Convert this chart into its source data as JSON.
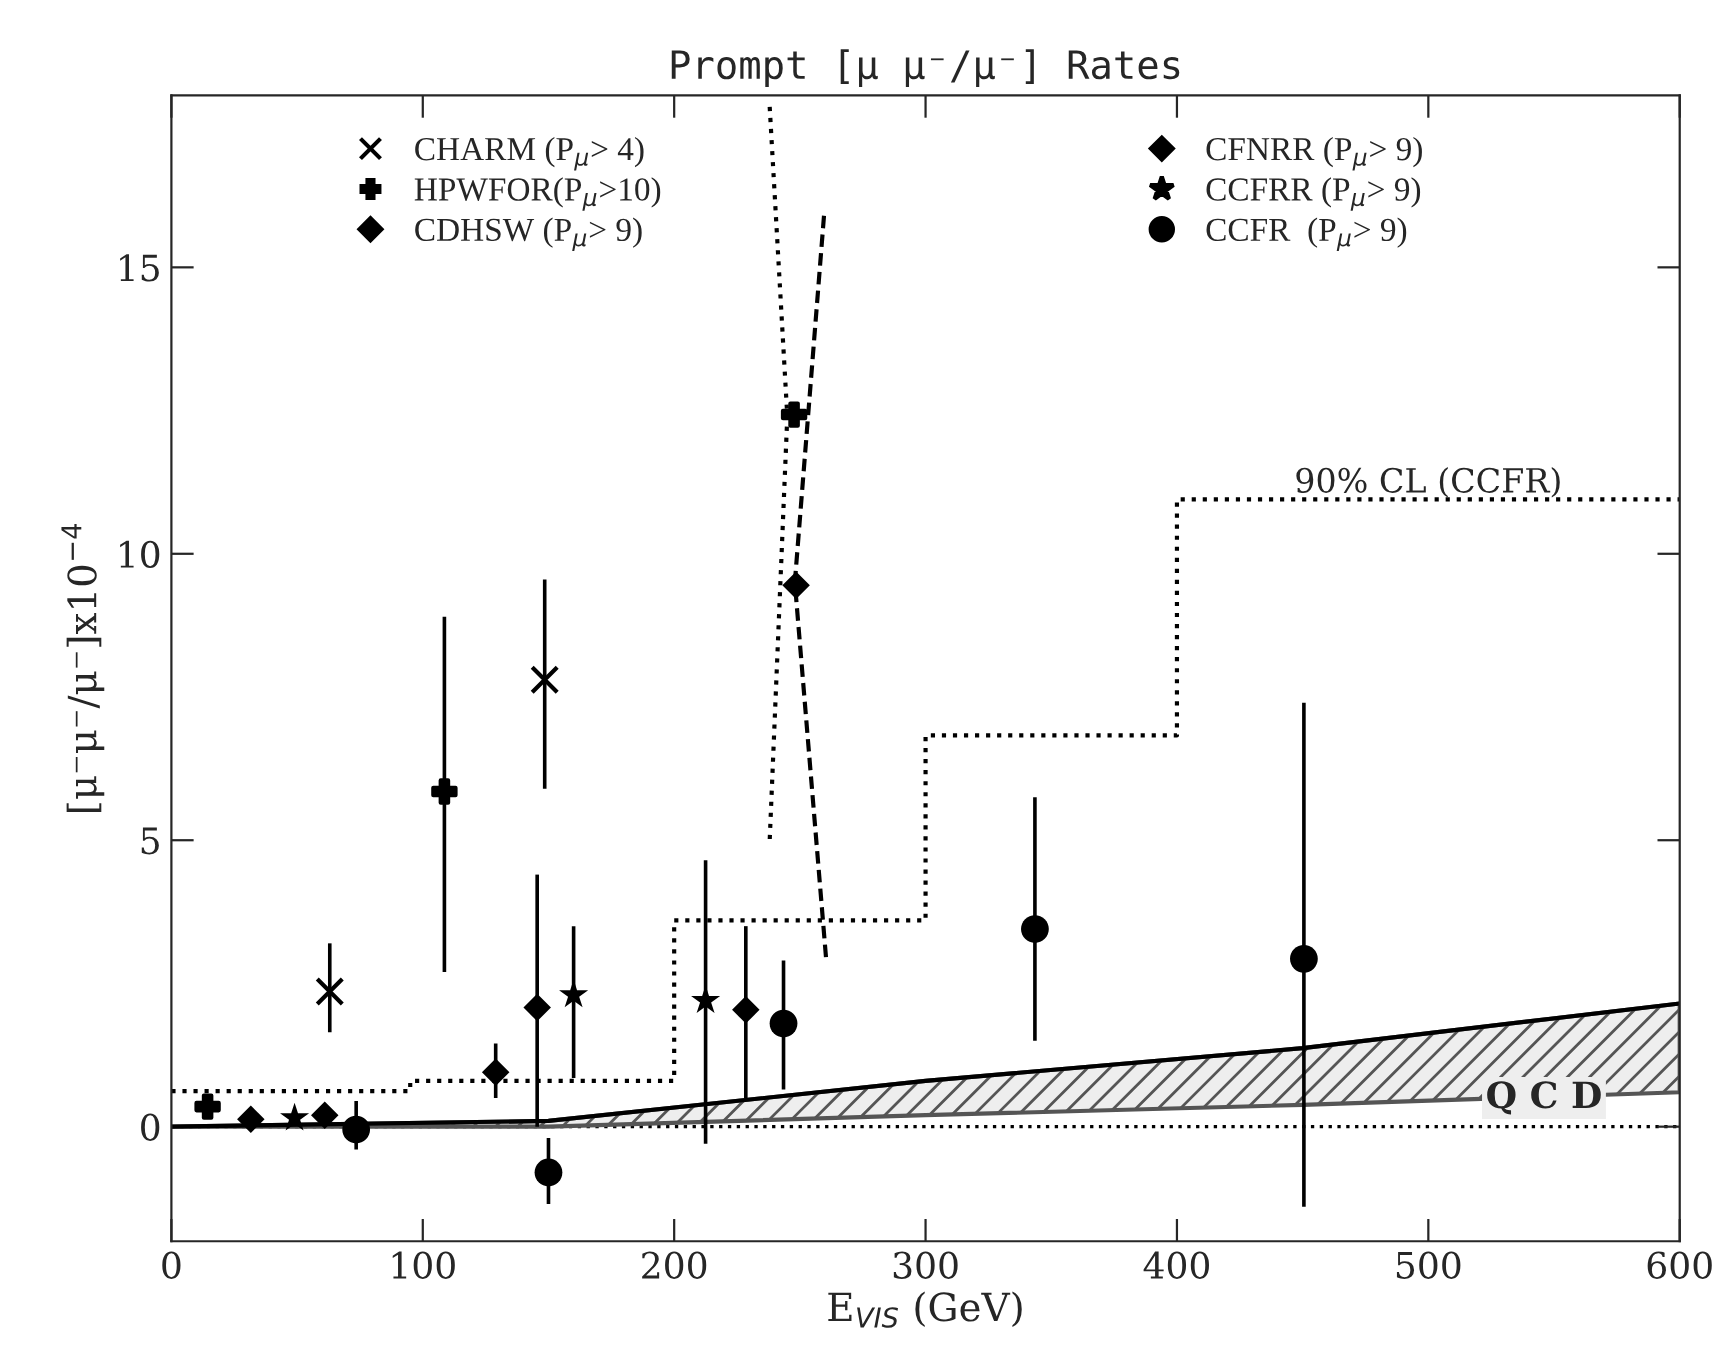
{
  "chart_data": {
    "type": "scatter",
    "title": "Prompt [μ μ⁻/μ⁻] Rates",
    "xlabel": "E$_{VIS}$ (GeV)",
    "ylabel": "[μ⁻μ⁻/μ⁻]x10$^{−4}$",
    "xlim": [
      0,
      600
    ],
    "ylim": [
      -2,
      18
    ],
    "xticks": [
      0,
      100,
      200,
      300,
      400,
      500,
      600
    ],
    "yticks": [
      0,
      5,
      10,
      15
    ],
    "grid": false,
    "legend": "top",
    "series": [
      {
        "name": "CHARM (P$_{μ}$> 4)",
        "color": "#000000",
        "marker": "cross",
        "x": [
          63,
          148.5
        ],
        "values": [
          2.36,
          7.8
        ],
        "errors": [
          [
            1.65,
            3.2
          ],
          [
            5.9,
            9.55
          ]
        ]
      },
      {
        "name": "HPWFOR(P$_{μ}$>10)",
        "color": "#000000",
        "marker": "plus",
        "x": [
          14.4,
          108.6,
          247.7
        ],
        "values": [
          0.35,
          5.85,
          12.43
        ],
        "errors": [
          null,
          [
            2.7,
            8.9
          ],
          null
        ]
      },
      {
        "name": "CDHSW (P$_{μ}$> 9)",
        "color": "#000000",
        "marker": "diamond",
        "x": [
          129
        ],
        "values": [
          0.95
        ],
        "errors": [
          [
            0.5,
            1.45
          ]
        ]
      },
      {
        "name": "CFNRR (P$_{μ}$> 9)",
        "color": "#000000",
        "marker": "diamond",
        "x": [
          31.6,
          61,
          145.5,
          228.5,
          248.5
        ],
        "values": [
          0.13,
          0.2,
          2.08,
          2.04,
          9.45
        ],
        "errors": [
          null,
          null,
          [
            0,
            4.4
          ],
          [
            0.5,
            3.5
          ],
          null
        ]
      },
      {
        "name": "CCFRR (P$_{μ}$> 9)",
        "color": "#000000",
        "marker": "star",
        "x": [
          49,
          160,
          212.5
        ],
        "values": [
          0.15,
          2.3,
          2.2
        ],
        "errors": [
          null,
          [
            0.85,
            3.5
          ],
          [
            -0.3,
            4.65
          ]
        ]
      },
      {
        "name": "CCFR  (P$_{μ}$> 9)",
        "color": "#000000",
        "marker": "circle",
        "x": [
          73.5,
          150,
          243.5,
          343.5,
          450.5
        ],
        "values": [
          -0.05,
          -0.8,
          1.8,
          3.45,
          2.93
        ],
        "errors": [
          [
            -0.4,
            0.45
          ],
          [
            -1.35,
            -0.2
          ],
          [
            0.65,
            2.9
          ],
          [
            1.5,
            5.75
          ],
          [
            -1.4,
            7.4
          ]
        ]
      },
      {
        "type": "step",
        "color": "#000000",
        "line_style": "dotted",
        "x": [
          0,
          95,
          200,
          300,
          400,
          600
        ],
        "values": [
          0.62,
          0.8,
          3.6,
          6.83,
          10.95,
          10.95
        ]
      },
      {
        "type": "line",
        "color": "#000000",
        "line_style": "dashed",
        "x": [
          259.6,
          248,
          260.5
        ],
        "values": [
          15.9,
          9.5,
          2.9
        ]
      },
      {
        "type": "line",
        "color": "#000000",
        "line_style": "dotted",
        "x": [
          238,
          245,
          238
        ],
        "values": [
          17.8,
          12.4,
          5.0
        ]
      },
      {
        "type": "line",
        "color": "#000000",
        "x": [
          0,
          150,
          300,
          450,
          600
        ],
        "values": [
          0,
          0.1,
          0.8,
          1.37,
          2.15
        ],
        "lower": [
          0,
          0,
          0.2,
          0.38,
          0.6
        ],
        "upper": [
          0,
          0.1,
          0.8,
          1.37,
          2.15
        ]
      }
    ],
    "ref_lines": [
      {
        "axis": "y",
        "value": 0,
        "line_style": "dotted",
        "color": "#000000"
      }
    ],
    "annotations": [
      {
        "text": "90% CL (CCFR)",
        "x": 500,
        "y": 10.95
      },
      "Q C D"
    ]
  }
}
